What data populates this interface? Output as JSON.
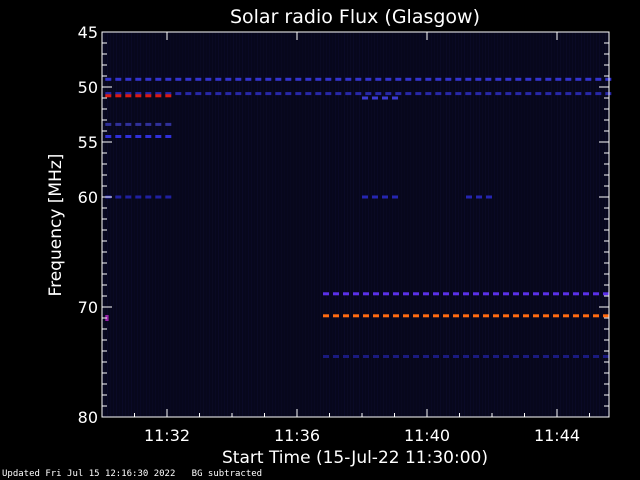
{
  "chart_data": {
    "type": "heatmap",
    "title": "Solar radio Flux (Glasgow)",
    "xlabel": "Start Time (15-Jul-22 11:30:00)",
    "ylabel": "Frequency [MHz]",
    "x_unit": "minutes after 11:30:00",
    "xlim": [
      0,
      15.6
    ],
    "ylim": [
      45,
      80
    ],
    "y_scale": "inverted",
    "x_ticks": [
      {
        "value": 2,
        "label": "11:32"
      },
      {
        "value": 6,
        "label": "11:36"
      },
      {
        "value": 10,
        "label": "11:40"
      },
      {
        "value": 14,
        "label": "11:44"
      }
    ],
    "y_ticks": [
      {
        "value": 45,
        "label": "45"
      },
      {
        "value": 50,
        "label": "50"
      },
      {
        "value": 55,
        "label": "55"
      },
      {
        "value": 60,
        "label": "60"
      },
      {
        "value": 70,
        "label": "70"
      },
      {
        "value": 80,
        "label": "80"
      }
    ],
    "background_color": "#07071c",
    "bands": [
      {
        "freq": 49.3,
        "t_start": 0.1,
        "t_end": 15.5,
        "color": "#3333cc",
        "dashed": true
      },
      {
        "freq": 50.6,
        "t_start": 0.1,
        "t_end": 15.5,
        "color": "#2727a8",
        "dashed": true
      },
      {
        "freq": 50.8,
        "t_start": 0.1,
        "t_end": 2.2,
        "color": "#dd1a10",
        "dashed": true
      },
      {
        "freq": 51.0,
        "t_start": 8.0,
        "t_end": 9.0,
        "color": "#3a3ad0",
        "dashed": true
      },
      {
        "freq": 53.4,
        "t_start": 0.1,
        "t_end": 2.2,
        "color": "#303099",
        "dashed": true
      },
      {
        "freq": 54.5,
        "t_start": 0.1,
        "t_end": 2.2,
        "color": "#3030d8",
        "dashed": true
      },
      {
        "freq": 60.0,
        "t_start": 0.1,
        "t_end": 2.0,
        "color": "#2020a0",
        "dashed": true
      },
      {
        "freq": 60.0,
        "t_start": 8.0,
        "t_end": 9.0,
        "color": "#2525b0",
        "dashed": true
      },
      {
        "freq": 60.0,
        "t_start": 11.2,
        "t_end": 12.0,
        "color": "#2525b0",
        "dashed": true
      },
      {
        "freq": 68.8,
        "t_start": 6.8,
        "t_end": 15.5,
        "color": "#5a30e8",
        "dashed": true
      },
      {
        "freq": 70.8,
        "t_start": 6.8,
        "t_end": 15.5,
        "color": "#ff6a10",
        "dashed": true
      },
      {
        "freq": 74.5,
        "t_start": 6.8,
        "t_end": 15.5,
        "color": "#1a1a80",
        "dashed": true
      },
      {
        "freq": 71.0,
        "t_start": 0.1,
        "t_end": 0.2,
        "color": "#9922aa",
        "dashed": false
      }
    ]
  },
  "footer": {
    "updated": "Updated Fri Jul 15 12:16:30 2022",
    "bg": "BG subtracted"
  }
}
